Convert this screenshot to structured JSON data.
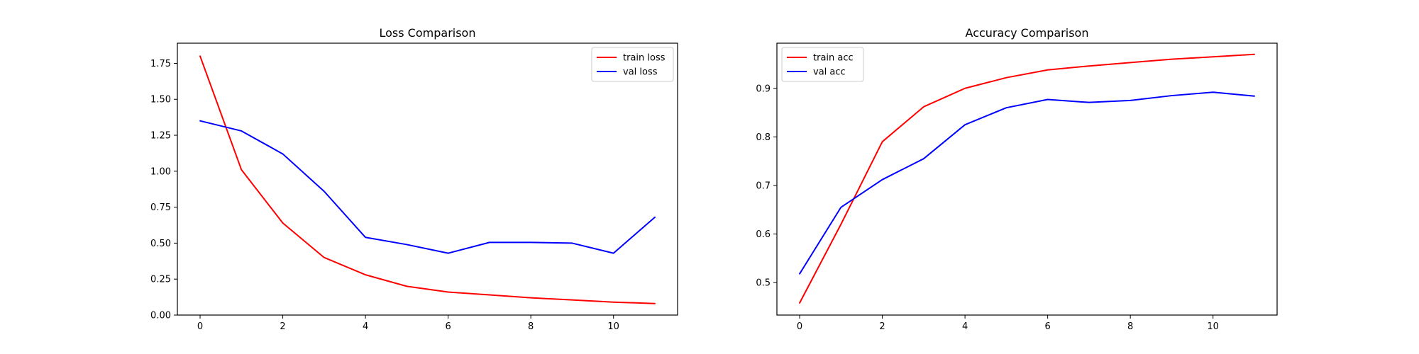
{
  "chart_data": [
    {
      "id": "loss",
      "type": "line",
      "title": "Loss Comparison",
      "xlabel": "",
      "ylabel": "",
      "xlim": [
        -0.55,
        11.55
      ],
      "ylim": [
        0.0,
        1.89
      ],
      "xticks": [
        0,
        2,
        4,
        6,
        8,
        10
      ],
      "yticks": [
        0.0,
        0.25,
        0.5,
        0.75,
        1.0,
        1.25,
        1.5,
        1.75
      ],
      "ytick_labels": [
        "0.00",
        "0.25",
        "0.50",
        "0.75",
        "1.00",
        "1.25",
        "1.50",
        "1.75"
      ],
      "grid": false,
      "legend_position": "top-right",
      "x": [
        0,
        1,
        2,
        3,
        4,
        5,
        6,
        7,
        8,
        9,
        10,
        11
      ],
      "series": [
        {
          "name": "train loss",
          "color": "#ff0000",
          "values": [
            1.8,
            1.01,
            0.64,
            0.4,
            0.28,
            0.2,
            0.16,
            0.14,
            0.12,
            0.105,
            0.09,
            0.08
          ]
        },
        {
          "name": "val loss",
          "color": "#0000ff",
          "values": [
            1.35,
            1.28,
            1.12,
            0.86,
            0.54,
            0.49,
            0.43,
            0.505,
            0.505,
            0.5,
            0.43,
            0.68
          ]
        }
      ]
    },
    {
      "id": "accuracy",
      "type": "line",
      "title": "Accuracy Comparison",
      "xlabel": "",
      "ylabel": "",
      "xlim": [
        -0.55,
        11.55
      ],
      "ylim": [
        0.433,
        0.993
      ],
      "xticks": [
        0,
        2,
        4,
        6,
        8,
        10
      ],
      "yticks": [
        0.5,
        0.6,
        0.7,
        0.8,
        0.9
      ],
      "ytick_labels": [
        "0.5",
        "0.6",
        "0.7",
        "0.8",
        "0.9"
      ],
      "grid": false,
      "legend_position": "top-left",
      "x": [
        0,
        1,
        2,
        3,
        4,
        5,
        6,
        7,
        8,
        9,
        10,
        11
      ],
      "series": [
        {
          "name": "train acc",
          "color": "#ff0000",
          "values": [
            0.458,
            0.62,
            0.79,
            0.862,
            0.9,
            0.922,
            0.938,
            0.946,
            0.953,
            0.96,
            0.965,
            0.97
          ]
        },
        {
          "name": "val acc",
          "color": "#0000ff",
          "values": [
            0.518,
            0.655,
            0.712,
            0.755,
            0.825,
            0.86,
            0.877,
            0.871,
            0.875,
            0.885,
            0.892,
            0.884
          ]
        }
      ]
    }
  ]
}
